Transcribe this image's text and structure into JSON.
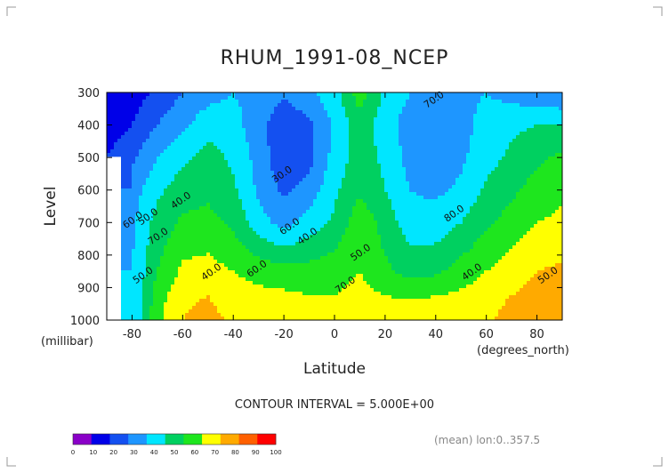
{
  "chart_data": {
    "type": "heatmap",
    "title": "RHUM_1991-08_NCEP",
    "xlabel": "Latitude",
    "xunits": "(degrees_north)",
    "ylabel": "Level",
    "yunits": "(millibar)",
    "xlim": [
      -90,
      90
    ],
    "ylim": [
      1000,
      300
    ],
    "xticks": [
      "-80",
      "-60",
      "-40",
      "-20",
      "0",
      "20",
      "40",
      "60",
      "80"
    ],
    "yticks": [
      "300",
      "400",
      "500",
      "600",
      "700",
      "800",
      "900",
      "1000"
    ],
    "contour_interval_text": "CONTOUR INTERVAL = 5.000E+00",
    "footnote": "(mean) lon:0..357.5",
    "contour_labels": [
      "30.0",
      "40.0",
      "50.0",
      "60.0",
      "70.0",
      "40.0",
      "50.0",
      "60.0",
      "40.0",
      "50.0",
      "70.0",
      "80.0",
      "40.0",
      "50.0",
      "60.0",
      "70.0"
    ],
    "colorbar": {
      "ticks": [
        "0",
        "10",
        "20",
        "30",
        "40",
        "50",
        "60",
        "70",
        "80",
        "90",
        "100"
      ],
      "colors": [
        "#8a00c8",
        "#0000e8",
        "#1450f0",
        "#1e96ff",
        "#00e6ff",
        "#00d060",
        "#1ee61e",
        "#ffff00",
        "#ffaa00",
        "#ff6000",
        "#ff0000"
      ]
    },
    "latitudes": [
      -90,
      -80,
      -70,
      -60,
      -50,
      -40,
      -30,
      -20,
      -10,
      0,
      10,
      20,
      30,
      40,
      50,
      60,
      70,
      80,
      90
    ],
    "levels": [
      1000,
      925,
      850,
      700,
      600,
      500,
      400,
      300
    ],
    "rhum": [
      [
        null,
        40,
        68,
        80,
        84,
        78,
        76,
        74,
        73,
        72,
        76,
        74,
        76,
        74,
        76,
        78,
        84,
        86,
        88
      ],
      [
        null,
        40,
        65,
        78,
        80,
        74,
        73,
        72,
        70,
        70,
        74,
        70,
        69,
        70,
        72,
        76,
        80,
        84,
        85
      ],
      [
        null,
        40,
        60,
        72,
        74,
        70,
        66,
        64,
        64,
        66,
        70,
        62,
        56,
        58,
        64,
        70,
        75,
        80,
        82
      ],
      [
        null,
        38,
        54,
        62,
        63,
        58,
        44,
        36,
        44,
        52,
        67,
        56,
        44,
        44,
        50,
        58,
        64,
        70,
        72
      ],
      [
        null,
        35,
        48,
        55,
        58,
        52,
        38,
        28,
        34,
        48,
        58,
        50,
        40,
        38,
        42,
        52,
        58,
        64,
        68
      ],
      [
        20,
        28,
        40,
        48,
        54,
        48,
        36,
        22,
        26,
        44,
        55,
        48,
        36,
        32,
        38,
        46,
        52,
        58,
        62
      ],
      [
        14,
        20,
        30,
        38,
        46,
        44,
        34,
        22,
        28,
        42,
        55,
        45,
        34,
        32,
        36,
        44,
        48,
        50,
        50
      ],
      [
        10,
        15,
        22,
        30,
        36,
        40,
        36,
        32,
        38,
        46,
        66,
        48,
        40,
        36,
        38,
        40,
        36,
        32,
        30
      ]
    ]
  }
}
